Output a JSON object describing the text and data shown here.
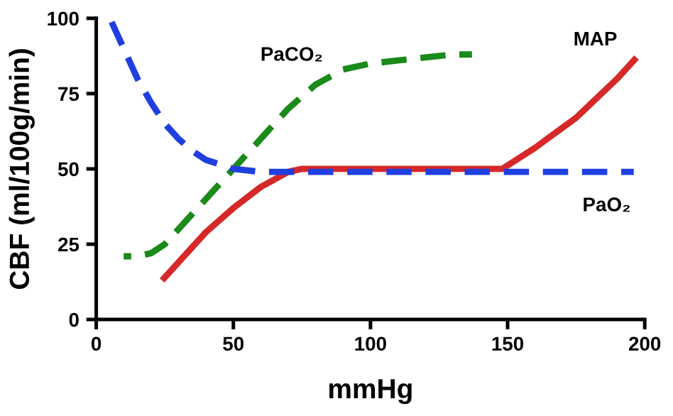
{
  "chart_data": {
    "type": "line",
    "xlabel": "mmHg",
    "ylabel": "CBF (ml/100g/min)",
    "xlim": [
      0,
      200
    ],
    "ylim": [
      0,
      100
    ],
    "xticks": [
      0,
      50,
      100,
      150,
      200
    ],
    "yticks": [
      0,
      25,
      50,
      75,
      100
    ],
    "grid": false,
    "legend": false,
    "series": [
      {
        "name": "PaCO₂",
        "color": "#1a8a1a",
        "line_style": "dashed",
        "x": [
          10,
          15,
          20,
          25,
          30,
          40,
          50,
          60,
          70,
          80,
          90,
          100,
          110,
          120,
          130,
          137
        ],
        "values": [
          21,
          21,
          22,
          25,
          30,
          40,
          50,
          60,
          70,
          78,
          83,
          85,
          86,
          87,
          88,
          88
        ]
      },
      {
        "name": "MAP",
        "color": "#d62828",
        "line_style": "solid",
        "x": [
          24,
          30,
          40,
          50,
          60,
          70,
          75,
          148,
          160,
          175,
          190,
          197
        ],
        "values": [
          13,
          19,
          29,
          37,
          44,
          49,
          50,
          50,
          57,
          67,
          80,
          87
        ]
      },
      {
        "name": "PaO₂",
        "color": "#1f3fe0",
        "line_style": "dashed",
        "x": [
          5,
          10,
          15,
          20,
          25,
          30,
          35,
          40,
          50,
          60,
          80,
          150,
          196
        ],
        "values": [
          100,
          90,
          80,
          72,
          65,
          60,
          56,
          53,
          50,
          49,
          49,
          49,
          49
        ]
      }
    ]
  }
}
